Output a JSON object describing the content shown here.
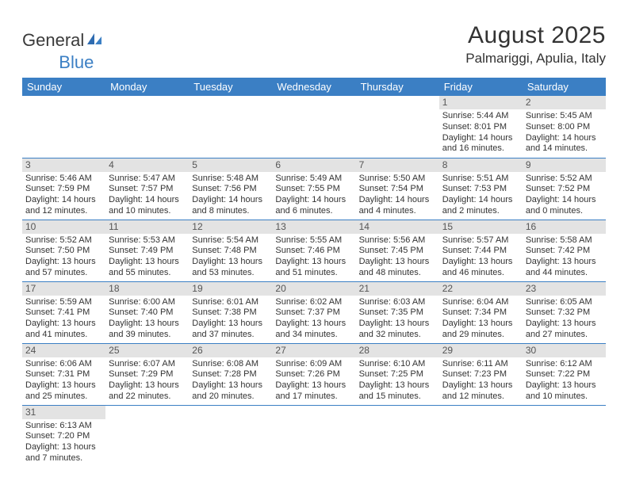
{
  "logo": {
    "text1": "General",
    "text2": "Blue"
  },
  "title": "August 2025",
  "location": "Palmariggi, Apulia, Italy",
  "colors": {
    "header_bg": "#3b7fc4",
    "header_text": "#ffffff",
    "daynum_bg": "#e3e3e3",
    "daynum_text": "#555555",
    "cell_border": "#3b7fc4",
    "body_text": "#333333",
    "page_bg": "#ffffff"
  },
  "day_headers": [
    "Sunday",
    "Monday",
    "Tuesday",
    "Wednesday",
    "Thursday",
    "Friday",
    "Saturday"
  ],
  "weeks": [
    [
      null,
      null,
      null,
      null,
      null,
      {
        "n": "1",
        "sr": "Sunrise: 5:44 AM",
        "ss": "Sunset: 8:01 PM",
        "d1": "Daylight: 14 hours",
        "d2": "and 16 minutes."
      },
      {
        "n": "2",
        "sr": "Sunrise: 5:45 AM",
        "ss": "Sunset: 8:00 PM",
        "d1": "Daylight: 14 hours",
        "d2": "and 14 minutes."
      }
    ],
    [
      {
        "n": "3",
        "sr": "Sunrise: 5:46 AM",
        "ss": "Sunset: 7:59 PM",
        "d1": "Daylight: 14 hours",
        "d2": "and 12 minutes."
      },
      {
        "n": "4",
        "sr": "Sunrise: 5:47 AM",
        "ss": "Sunset: 7:57 PM",
        "d1": "Daylight: 14 hours",
        "d2": "and 10 minutes."
      },
      {
        "n": "5",
        "sr": "Sunrise: 5:48 AM",
        "ss": "Sunset: 7:56 PM",
        "d1": "Daylight: 14 hours",
        "d2": "and 8 minutes."
      },
      {
        "n": "6",
        "sr": "Sunrise: 5:49 AM",
        "ss": "Sunset: 7:55 PM",
        "d1": "Daylight: 14 hours",
        "d2": "and 6 minutes."
      },
      {
        "n": "7",
        "sr": "Sunrise: 5:50 AM",
        "ss": "Sunset: 7:54 PM",
        "d1": "Daylight: 14 hours",
        "d2": "and 4 minutes."
      },
      {
        "n": "8",
        "sr": "Sunrise: 5:51 AM",
        "ss": "Sunset: 7:53 PM",
        "d1": "Daylight: 14 hours",
        "d2": "and 2 minutes."
      },
      {
        "n": "9",
        "sr": "Sunrise: 5:52 AM",
        "ss": "Sunset: 7:52 PM",
        "d1": "Daylight: 14 hours",
        "d2": "and 0 minutes."
      }
    ],
    [
      {
        "n": "10",
        "sr": "Sunrise: 5:52 AM",
        "ss": "Sunset: 7:50 PM",
        "d1": "Daylight: 13 hours",
        "d2": "and 57 minutes."
      },
      {
        "n": "11",
        "sr": "Sunrise: 5:53 AM",
        "ss": "Sunset: 7:49 PM",
        "d1": "Daylight: 13 hours",
        "d2": "and 55 minutes."
      },
      {
        "n": "12",
        "sr": "Sunrise: 5:54 AM",
        "ss": "Sunset: 7:48 PM",
        "d1": "Daylight: 13 hours",
        "d2": "and 53 minutes."
      },
      {
        "n": "13",
        "sr": "Sunrise: 5:55 AM",
        "ss": "Sunset: 7:46 PM",
        "d1": "Daylight: 13 hours",
        "d2": "and 51 minutes."
      },
      {
        "n": "14",
        "sr": "Sunrise: 5:56 AM",
        "ss": "Sunset: 7:45 PM",
        "d1": "Daylight: 13 hours",
        "d2": "and 48 minutes."
      },
      {
        "n": "15",
        "sr": "Sunrise: 5:57 AM",
        "ss": "Sunset: 7:44 PM",
        "d1": "Daylight: 13 hours",
        "d2": "and 46 minutes."
      },
      {
        "n": "16",
        "sr": "Sunrise: 5:58 AM",
        "ss": "Sunset: 7:42 PM",
        "d1": "Daylight: 13 hours",
        "d2": "and 44 minutes."
      }
    ],
    [
      {
        "n": "17",
        "sr": "Sunrise: 5:59 AM",
        "ss": "Sunset: 7:41 PM",
        "d1": "Daylight: 13 hours",
        "d2": "and 41 minutes."
      },
      {
        "n": "18",
        "sr": "Sunrise: 6:00 AM",
        "ss": "Sunset: 7:40 PM",
        "d1": "Daylight: 13 hours",
        "d2": "and 39 minutes."
      },
      {
        "n": "19",
        "sr": "Sunrise: 6:01 AM",
        "ss": "Sunset: 7:38 PM",
        "d1": "Daylight: 13 hours",
        "d2": "and 37 minutes."
      },
      {
        "n": "20",
        "sr": "Sunrise: 6:02 AM",
        "ss": "Sunset: 7:37 PM",
        "d1": "Daylight: 13 hours",
        "d2": "and 34 minutes."
      },
      {
        "n": "21",
        "sr": "Sunrise: 6:03 AM",
        "ss": "Sunset: 7:35 PM",
        "d1": "Daylight: 13 hours",
        "d2": "and 32 minutes."
      },
      {
        "n": "22",
        "sr": "Sunrise: 6:04 AM",
        "ss": "Sunset: 7:34 PM",
        "d1": "Daylight: 13 hours",
        "d2": "and 29 minutes."
      },
      {
        "n": "23",
        "sr": "Sunrise: 6:05 AM",
        "ss": "Sunset: 7:32 PM",
        "d1": "Daylight: 13 hours",
        "d2": "and 27 minutes."
      }
    ],
    [
      {
        "n": "24",
        "sr": "Sunrise: 6:06 AM",
        "ss": "Sunset: 7:31 PM",
        "d1": "Daylight: 13 hours",
        "d2": "and 25 minutes."
      },
      {
        "n": "25",
        "sr": "Sunrise: 6:07 AM",
        "ss": "Sunset: 7:29 PM",
        "d1": "Daylight: 13 hours",
        "d2": "and 22 minutes."
      },
      {
        "n": "26",
        "sr": "Sunrise: 6:08 AM",
        "ss": "Sunset: 7:28 PM",
        "d1": "Daylight: 13 hours",
        "d2": "and 20 minutes."
      },
      {
        "n": "27",
        "sr": "Sunrise: 6:09 AM",
        "ss": "Sunset: 7:26 PM",
        "d1": "Daylight: 13 hours",
        "d2": "and 17 minutes."
      },
      {
        "n": "28",
        "sr": "Sunrise: 6:10 AM",
        "ss": "Sunset: 7:25 PM",
        "d1": "Daylight: 13 hours",
        "d2": "and 15 minutes."
      },
      {
        "n": "29",
        "sr": "Sunrise: 6:11 AM",
        "ss": "Sunset: 7:23 PM",
        "d1": "Daylight: 13 hours",
        "d2": "and 12 minutes."
      },
      {
        "n": "30",
        "sr": "Sunrise: 6:12 AM",
        "ss": "Sunset: 7:22 PM",
        "d1": "Daylight: 13 hours",
        "d2": "and 10 minutes."
      }
    ],
    [
      {
        "n": "31",
        "sr": "Sunrise: 6:13 AM",
        "ss": "Sunset: 7:20 PM",
        "d1": "Daylight: 13 hours",
        "d2": "and 7 minutes."
      },
      null,
      null,
      null,
      null,
      null,
      null
    ]
  ]
}
